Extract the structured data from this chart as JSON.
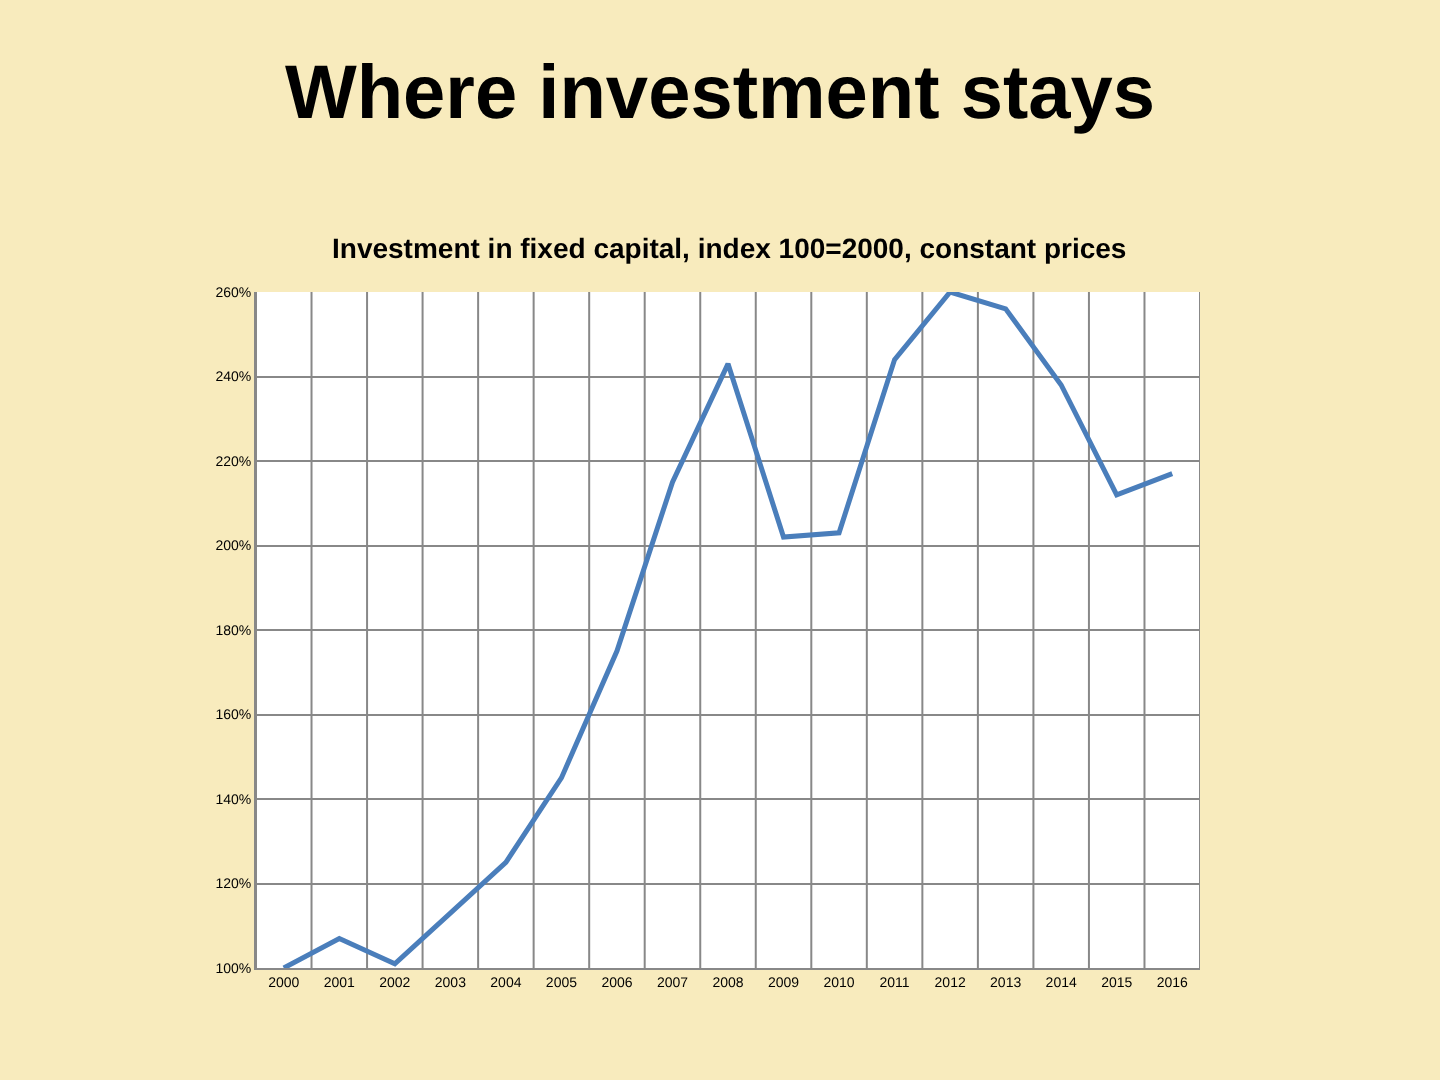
{
  "chart_data": {
    "type": "line",
    "title": "Where investment stays",
    "subtitle": "Investment in fixed capital, index 100=2000, constant prices",
    "categories": [
      "2000",
      "2001",
      "2002",
      "2003",
      "2004",
      "2005",
      "2006",
      "2007",
      "2008",
      "2009",
      "2010",
      "2011",
      "2012",
      "2013",
      "2014",
      "2015",
      "2016"
    ],
    "series": [
      {
        "color": "#4a7ebb",
        "values": [
          100,
          107,
          101,
          113,
          125,
          145,
          175,
          215,
          243,
          202,
          203,
          244,
          260,
          256,
          238,
          212,
          217
        ]
      }
    ],
    "ylim": [
      100,
      260
    ],
    "yticks": [
      {
        "value": 100,
        "label": "100%"
      },
      {
        "value": 120,
        "label": "120%"
      },
      {
        "value": 140,
        "label": "140%"
      },
      {
        "value": 160,
        "label": "160%"
      },
      {
        "value": 180,
        "label": "180%"
      },
      {
        "value": 200,
        "label": "200%"
      },
      {
        "value": 220,
        "label": "220%"
      },
      {
        "value": 240,
        "label": "240%"
      },
      {
        "value": 260,
        "label": "260%"
      }
    ],
    "grid": true,
    "marker": "none",
    "line_style": "solid"
  }
}
